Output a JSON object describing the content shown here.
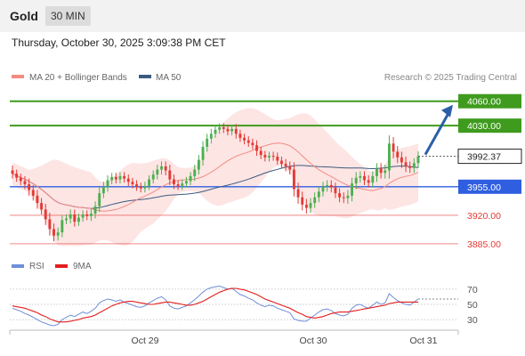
{
  "header": {
    "symbol": "Gold",
    "timeframe": "30 MIN",
    "datetime": "Thursday, October 30, 2025 3:09:38 PM CET"
  },
  "legend": {
    "ma20_bb": "MA 20 + Bollinger Bands",
    "ma50": "MA 50",
    "credit": "Research © 2025 Trading Central",
    "rsi": "RSI",
    "ma9": "9MA"
  },
  "colors": {
    "up": "#4caf50",
    "down": "#e53935",
    "ma20": "#f28b82",
    "bands": "#fde0df",
    "ma50": "#3d5a80",
    "resistance": "#3f9b1e",
    "pivot": "#2f5fe0",
    "support": "#e53935",
    "rsi": "#6f8fd9",
    "rsi_ma": "#e31e1e",
    "arrow": "#2a5fa8"
  },
  "chart_data": [
    {
      "type": "candlestick",
      "yrange": [
        3875,
        4075
      ],
      "x_labels": [
        "Oct 29",
        "Oct 30",
        "Oct 31"
      ],
      "levels": [
        {
          "value": 4060.0,
          "label": "4060.00",
          "kind": "resistance"
        },
        {
          "value": 4030.0,
          "label": "4030.00",
          "kind": "resistance"
        },
        {
          "value": 3955.0,
          "label": "3955.00",
          "kind": "pivot"
        },
        {
          "value": 3920.0,
          "label": "3920.00",
          "kind": "support"
        },
        {
          "value": 3885.0,
          "label": "3885.00",
          "kind": "support"
        }
      ],
      "last_price": {
        "value": 3992.37,
        "label": "3992.37"
      },
      "forecast_target": 4060.0,
      "close": [
        3971,
        3966,
        3962,
        3958,
        3951,
        3944,
        3935,
        3927,
        3915,
        3903,
        3895,
        3899,
        3914,
        3916,
        3921,
        3912,
        3917,
        3921,
        3919,
        3922,
        3931,
        3947,
        3955,
        3963,
        3967,
        3964,
        3968,
        3965,
        3961,
        3958,
        3955,
        3953,
        3956,
        3964,
        3970,
        3976,
        3980,
        3975,
        3964,
        3958,
        3956,
        3959,
        3962,
        3968,
        3976,
        3988,
        4004,
        4014,
        4020,
        4025,
        4028,
        4026,
        4023,
        4026,
        4020,
        4015,
        4012,
        4009,
        4006,
        3999,
        3994,
        3991,
        3993,
        3992,
        3987,
        3983,
        3980,
        3976,
        3952,
        3942,
        3933,
        3929,
        3935,
        3942,
        3949,
        3955,
        3957,
        3954,
        3947,
        3942,
        3941,
        3944,
        3959,
        3966,
        3968,
        3963,
        3960,
        3968,
        3977,
        3972,
        3975,
        4008,
        3998,
        3991,
        3985,
        3980,
        3978,
        3984,
        3992.37
      ],
      "volatility": [
        6,
        5,
        5,
        6,
        7,
        6,
        7,
        6,
        7,
        8,
        7,
        6,
        6,
        5,
        6,
        6,
        5,
        5,
        5,
        6,
        6,
        7,
        6,
        6,
        5,
        5,
        5,
        5,
        5,
        5,
        5,
        5,
        5,
        5,
        5,
        6,
        6,
        6,
        7,
        6,
        5,
        5,
        5,
        5,
        6,
        6,
        7,
        6,
        6,
        5,
        5,
        5,
        5,
        5,
        6,
        5,
        5,
        5,
        5,
        6,
        5,
        5,
        5,
        5,
        5,
        5,
        6,
        6,
        9,
        8,
        7,
        7,
        6,
        6,
        6,
        6,
        6,
        6,
        6,
        6,
        6,
        7,
        7,
        7,
        6,
        6,
        6,
        6,
        7,
        7,
        7,
        10,
        8,
        7,
        7,
        7,
        6,
        6,
        6
      ]
    },
    {
      "type": "line",
      "name": "RSI",
      "yrange": [
        15,
        85
      ],
      "y_ticks": [
        70,
        50,
        30
      ],
      "rsi": [
        45,
        43,
        41,
        38,
        36,
        33,
        30,
        27,
        25,
        23,
        22,
        24,
        30,
        33,
        36,
        34,
        37,
        40,
        38,
        41,
        45,
        52,
        55,
        57,
        56,
        54,
        56,
        53,
        51,
        49,
        47,
        46,
        48,
        52,
        55,
        58,
        60,
        56,
        48,
        45,
        44,
        46,
        48,
        52,
        56,
        61,
        66,
        70,
        72,
        73,
        74,
        72,
        70,
        71,
        67,
        63,
        61,
        58,
        56,
        52,
        49,
        47,
        49,
        48,
        45,
        43,
        41,
        39,
        31,
        29,
        28,
        28,
        32,
        36,
        40,
        43,
        44,
        42,
        38,
        36,
        35,
        37,
        45,
        49,
        50,
        47,
        45,
        49,
        53,
        50,
        52,
        64,
        59,
        55,
        52,
        50,
        49,
        53,
        57
      ],
      "ma9": [
        48,
        47,
        46,
        45,
        43,
        41,
        39,
        36,
        34,
        31,
        29,
        27,
        27,
        27,
        28,
        29,
        30,
        32,
        33,
        34,
        36,
        39,
        42,
        45,
        48,
        50,
        52,
        53,
        54,
        54,
        53,
        52,
        51,
        50,
        50,
        51,
        52,
        53,
        53,
        52,
        51,
        50,
        49,
        49,
        50,
        52,
        54,
        57,
        60,
        63,
        66,
        68,
        70,
        71,
        71,
        70,
        69,
        67,
        65,
        63,
        60,
        57,
        55,
        53,
        51,
        49,
        47,
        45,
        42,
        39,
        37,
        34,
        33,
        32,
        33,
        34,
        36,
        38,
        39,
        40,
        40,
        40,
        41,
        42,
        43,
        44,
        45,
        46,
        47,
        48,
        49,
        51,
        52,
        53,
        53,
        53,
        53,
        53,
        53
      ]
    }
  ]
}
